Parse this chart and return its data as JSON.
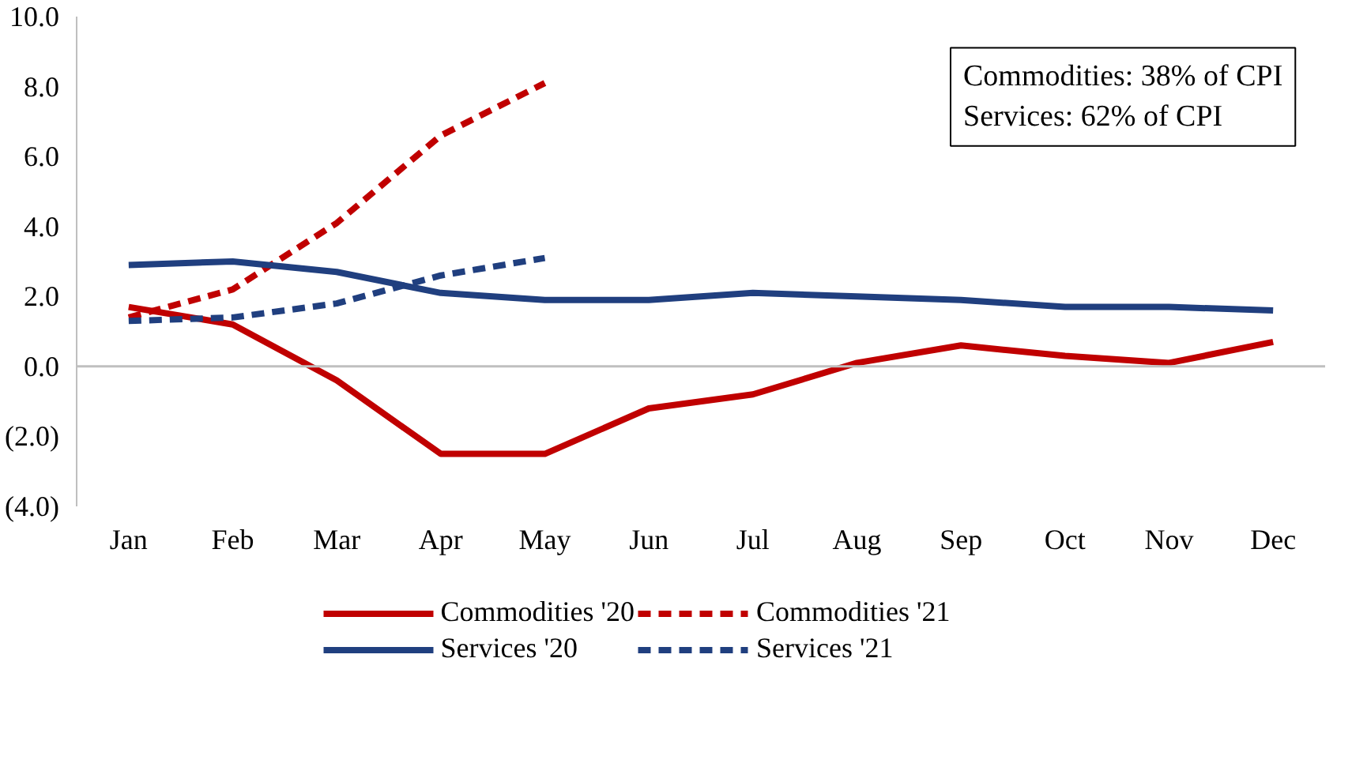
{
  "chart_data": {
    "type": "line",
    "categories": [
      "Jan",
      "Feb",
      "Mar",
      "Apr",
      "May",
      "Jun",
      "Jul",
      "Aug",
      "Sep",
      "Oct",
      "Nov",
      "Dec"
    ],
    "series": [
      {
        "name": "Commodities '20",
        "color": "#c00000",
        "line_style": "solid",
        "values": [
          1.7,
          1.2,
          -0.4,
          -2.5,
          -2.5,
          -1.2,
          -0.8,
          0.1,
          0.6,
          0.3,
          0.1,
          0.7
        ]
      },
      {
        "name": "Commodities '21",
        "color": "#c00000",
        "line_style": "dashed",
        "values": [
          1.4,
          2.2,
          4.1,
          6.6,
          8.1,
          null,
          null,
          null,
          null,
          null,
          null,
          null
        ]
      },
      {
        "name": "Services '20",
        "color": "#203f7f",
        "line_style": "solid",
        "values": [
          2.9,
          3.0,
          2.7,
          2.1,
          1.9,
          1.9,
          2.1,
          2.0,
          1.9,
          1.7,
          1.7,
          1.6
        ]
      },
      {
        "name": "Services '21",
        "color": "#203f7f",
        "line_style": "dashed",
        "values": [
          1.3,
          1.4,
          1.8,
          2.6,
          3.1,
          null,
          null,
          null,
          null,
          null,
          null,
          null
        ]
      }
    ],
    "ylim": [
      -4,
      10
    ],
    "yticks": [
      {
        "value": -4,
        "label": "(4.0)"
      },
      {
        "value": -2,
        "label": "(2.0)"
      },
      {
        "value": 0,
        "label": "0.0"
      },
      {
        "value": 2,
        "label": "2.0"
      },
      {
        "value": 4,
        "label": "4.0"
      },
      {
        "value": 6,
        "label": "6.0"
      },
      {
        "value": 8,
        "label": "8.0"
      },
      {
        "value": 10,
        "label": "10.0"
      }
    ],
    "ref_lines": [
      {
        "axis": "y",
        "value": 0,
        "color": "#bfbfbf"
      }
    ],
    "annotations": [
      "Commodities: 38% of CPI",
      "Services: 62% of CPI"
    ],
    "grid": false,
    "legend": "bottom",
    "marker": "none"
  }
}
